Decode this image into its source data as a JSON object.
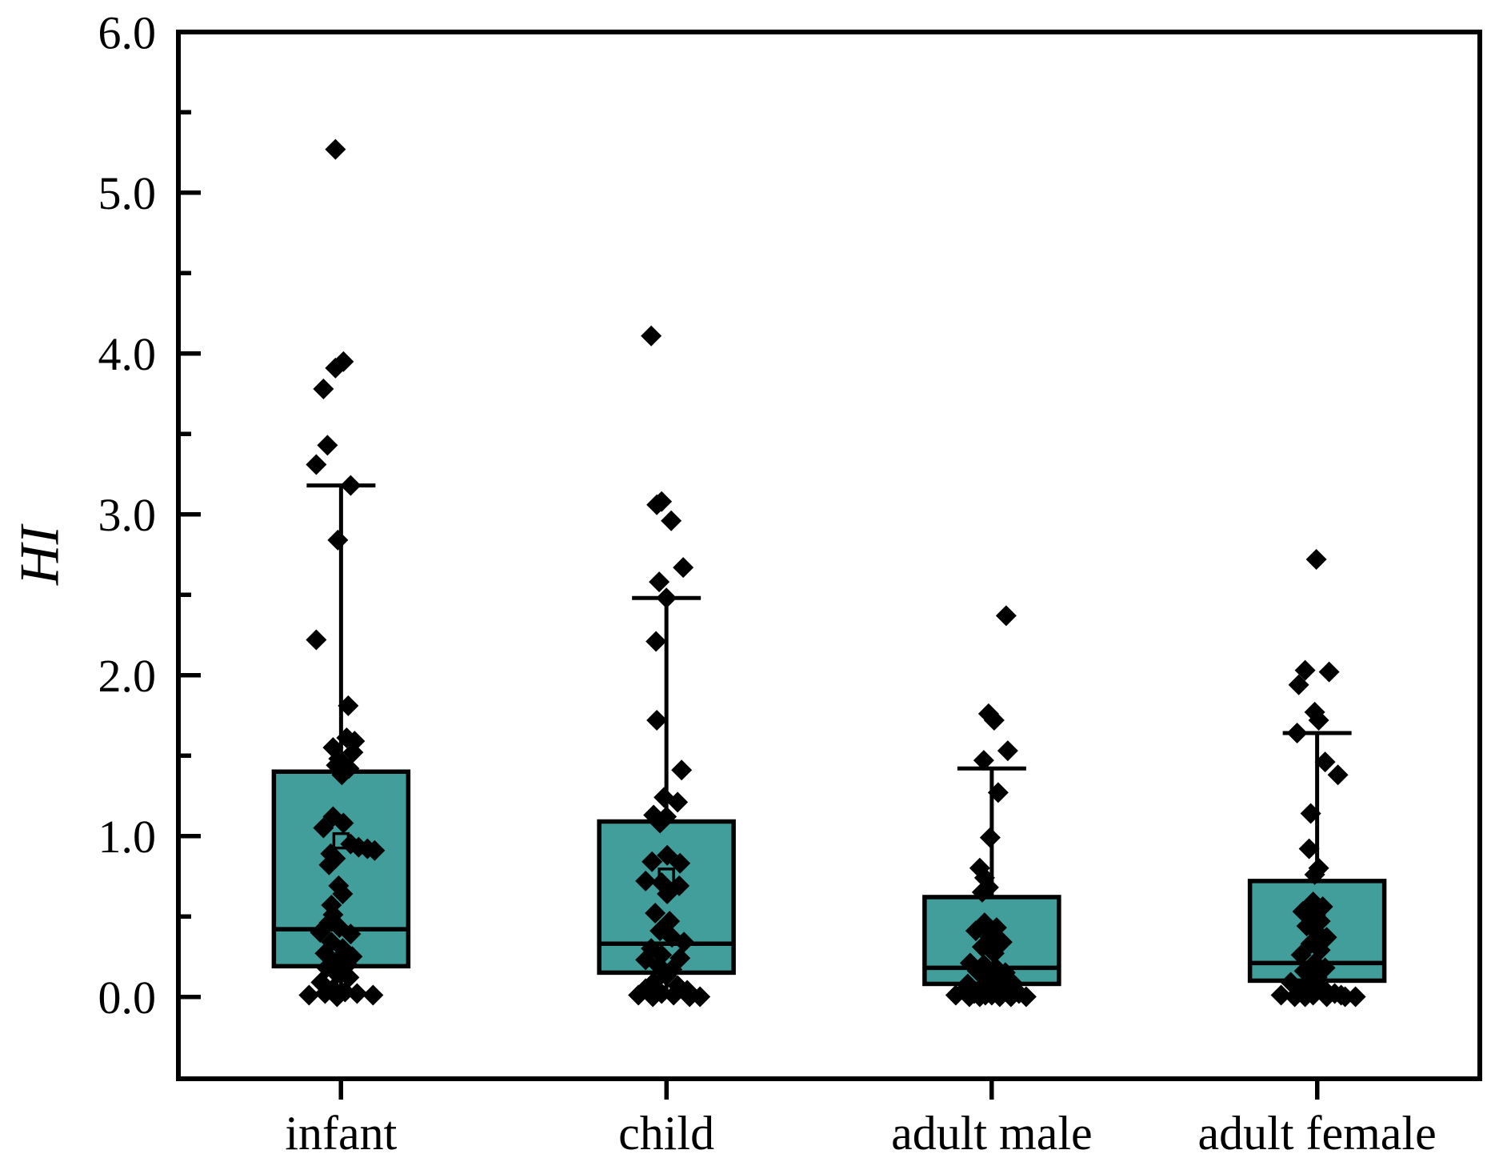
{
  "chart_data": {
    "type": "box",
    "title": "",
    "ylabel": "HI",
    "xlabel": "",
    "ylim": [
      -0.51,
      6.0
    ],
    "yticks": [
      0.0,
      1.0,
      2.0,
      3.0,
      4.0,
      5.0,
      6.0
    ],
    "ytick_labels": [
      "0.0",
      "1.0",
      "2.0",
      "3.0",
      "4.0",
      "5.0",
      "6.0"
    ],
    "minor_tick_step": 0.5,
    "grid": false,
    "legend": "none",
    "categories": [
      "infant",
      "child",
      "adult male",
      "adult female"
    ],
    "colors": {
      "box_fill": "#429E9B",
      "box_border": "#000000",
      "marker": "#000000",
      "mean_marker_border": "#000000",
      "axis": "#000000",
      "background": "#ffffff"
    },
    "marker_shape": "diamond",
    "mean_marker_shape": "open-square",
    "groups": [
      {
        "label": "infant",
        "q1": 0.19,
        "median": 0.42,
        "q3": 1.4,
        "whisker_low": 0.02,
        "whisker_high": 3.18,
        "mean": 0.97,
        "points": [
          [
            5.27,
            -7
          ],
          [
            3.95,
            3
          ],
          [
            3.91,
            -7
          ],
          [
            3.78,
            -22
          ],
          [
            3.43,
            -17
          ],
          [
            3.31,
            -31
          ],
          [
            3.18,
            12
          ],
          [
            2.84,
            -4
          ],
          [
            2.22,
            -31
          ],
          [
            1.81,
            9
          ],
          [
            1.61,
            7
          ],
          [
            1.59,
            17
          ],
          [
            1.55,
            -10
          ],
          [
            1.52,
            15
          ],
          [
            1.48,
            -3
          ],
          [
            1.44,
            -6
          ],
          [
            1.42,
            10
          ],
          [
            1.38,
            1
          ],
          [
            1.12,
            -10
          ],
          [
            1.08,
            3
          ],
          [
            1.05,
            -22
          ],
          [
            0.95,
            12
          ],
          [
            0.93,
            22
          ],
          [
            0.92,
            33
          ],
          [
            0.91,
            42
          ],
          [
            0.89,
            -13
          ],
          [
            0.86,
            -7
          ],
          [
            0.82,
            -15
          ],
          [
            0.69,
            -3
          ],
          [
            0.64,
            2
          ],
          [
            0.57,
            -12
          ],
          [
            0.51,
            -10
          ],
          [
            0.46,
            -15
          ],
          [
            0.43,
            -2
          ],
          [
            0.4,
            -26
          ],
          [
            0.39,
            12
          ],
          [
            0.34,
            -12
          ],
          [
            0.3,
            2
          ],
          [
            0.27,
            -20
          ],
          [
            0.25,
            14
          ],
          [
            0.23,
            -4
          ],
          [
            0.2,
            8
          ],
          [
            0.18,
            -18
          ],
          [
            0.14,
            -5
          ],
          [
            0.12,
            10
          ],
          [
            0.09,
            -25
          ],
          [
            0.05,
            -10
          ],
          [
            0.03,
            5
          ],
          [
            0.02,
            -20
          ],
          [
            0.02,
            20
          ],
          [
            0.01,
            -40
          ],
          [
            0.01,
            40
          ],
          [
            0.0,
            -5
          ]
        ]
      },
      {
        "label": "child",
        "q1": 0.15,
        "median": 0.33,
        "q3": 1.09,
        "whisker_low": 0.01,
        "whisker_high": 2.48,
        "mean": 0.75,
        "points": [
          [
            4.11,
            -19
          ],
          [
            3.08,
            -6
          ],
          [
            3.06,
            -12
          ],
          [
            2.96,
            6
          ],
          [
            2.67,
            21
          ],
          [
            2.58,
            -9
          ],
          [
            2.48,
            0
          ],
          [
            2.21,
            -13
          ],
          [
            1.72,
            -12
          ],
          [
            1.41,
            19
          ],
          [
            1.24,
            -3
          ],
          [
            1.21,
            14
          ],
          [
            1.13,
            -16
          ],
          [
            1.12,
            0
          ],
          [
            1.08,
            -8
          ],
          [
            0.88,
            1
          ],
          [
            0.84,
            -18
          ],
          [
            0.83,
            17
          ],
          [
            0.72,
            -26
          ],
          [
            0.71,
            -6
          ],
          [
            0.69,
            16
          ],
          [
            0.64,
            1
          ],
          [
            0.52,
            -14
          ],
          [
            0.47,
            4
          ],
          [
            0.41,
            -8
          ],
          [
            0.37,
            7
          ],
          [
            0.34,
            22
          ],
          [
            0.3,
            -19
          ],
          [
            0.26,
            -6
          ],
          [
            0.24,
            17
          ],
          [
            0.23,
            -26
          ],
          [
            0.19,
            -9
          ],
          [
            0.17,
            7
          ],
          [
            0.13,
            0
          ],
          [
            0.09,
            -16
          ],
          [
            0.07,
            14
          ],
          [
            0.05,
            -26
          ],
          [
            0.04,
            26
          ],
          [
            0.02,
            -6
          ],
          [
            0.01,
            9
          ],
          [
            0.01,
            -35
          ],
          [
            0.0,
            -17
          ],
          [
            0.0,
            29
          ],
          [
            0.0,
            42
          ]
        ]
      },
      {
        "label": "adult male",
        "q1": 0.08,
        "median": 0.18,
        "q3": 0.62,
        "whisker_low": 0.01,
        "whisker_high": 1.42,
        "mean": 0.42,
        "points": [
          [
            2.37,
            18
          ],
          [
            1.76,
            -4
          ],
          [
            1.72,
            3
          ],
          [
            1.53,
            20
          ],
          [
            1.47,
            -10
          ],
          [
            1.27,
            8
          ],
          [
            0.99,
            -2
          ],
          [
            0.8,
            -15
          ],
          [
            0.74,
            -9
          ],
          [
            0.68,
            -4
          ],
          [
            0.65,
            -12
          ],
          [
            0.46,
            -9
          ],
          [
            0.43,
            6
          ],
          [
            0.41,
            -20
          ],
          [
            0.37,
            -2
          ],
          [
            0.34,
            13
          ],
          [
            0.31,
            -12
          ],
          [
            0.27,
            3
          ],
          [
            0.21,
            -27
          ],
          [
            0.2,
            -10
          ],
          [
            0.18,
            5
          ],
          [
            0.16,
            -18
          ],
          [
            0.15,
            17
          ],
          [
            0.12,
            -8
          ],
          [
            0.11,
            8
          ],
          [
            0.09,
            25
          ],
          [
            0.08,
            -30
          ],
          [
            0.07,
            16
          ],
          [
            0.05,
            -32
          ],
          [
            0.05,
            -14
          ],
          [
            0.04,
            2
          ],
          [
            0.03,
            18
          ],
          [
            0.02,
            -22
          ],
          [
            0.02,
            34
          ],
          [
            0.01,
            -45
          ],
          [
            0.01,
            -8
          ],
          [
            0.01,
            0
          ],
          [
            0.0,
            10
          ],
          [
            0.0,
            -28
          ],
          [
            0.0,
            43
          ],
          [
            0.0,
            24
          ],
          [
            0.0,
            -15
          ]
        ]
      },
      {
        "label": "adult female",
        "q1": 0.1,
        "median": 0.21,
        "q3": 0.72,
        "whisker_low": 0.01,
        "whisker_high": 1.64,
        "mean": 0.5,
        "points": [
          [
            2.72,
            -1
          ],
          [
            2.03,
            -15
          ],
          [
            2.02,
            15
          ],
          [
            1.94,
            -23
          ],
          [
            1.77,
            -3
          ],
          [
            1.72,
            2
          ],
          [
            1.64,
            -25
          ],
          [
            1.46,
            10
          ],
          [
            1.38,
            26
          ],
          [
            1.14,
            -8
          ],
          [
            0.92,
            -10
          ],
          [
            0.8,
            2
          ],
          [
            0.76,
            -3
          ],
          [
            0.59,
            -5
          ],
          [
            0.56,
            7
          ],
          [
            0.53,
            -18
          ],
          [
            0.5,
            -4
          ],
          [
            0.47,
            4
          ],
          [
            0.44,
            -13
          ],
          [
            0.4,
            0
          ],
          [
            0.37,
            12
          ],
          [
            0.33,
            -8
          ],
          [
            0.29,
            4
          ],
          [
            0.26,
            -20
          ],
          [
            0.21,
            -3
          ],
          [
            0.18,
            10
          ],
          [
            0.16,
            -16
          ],
          [
            0.12,
            0
          ],
          [
            0.09,
            -33
          ],
          [
            0.07,
            -10
          ],
          [
            0.05,
            8
          ],
          [
            0.04,
            -22
          ],
          [
            0.02,
            22
          ],
          [
            0.01,
            -45
          ],
          [
            0.01,
            -5
          ],
          [
            0.01,
            30
          ],
          [
            0.0,
            12
          ],
          [
            0.0,
            -28
          ],
          [
            0.0,
            35
          ],
          [
            0.0,
            48
          ],
          [
            0.0,
            -15
          ]
        ]
      }
    ]
  }
}
